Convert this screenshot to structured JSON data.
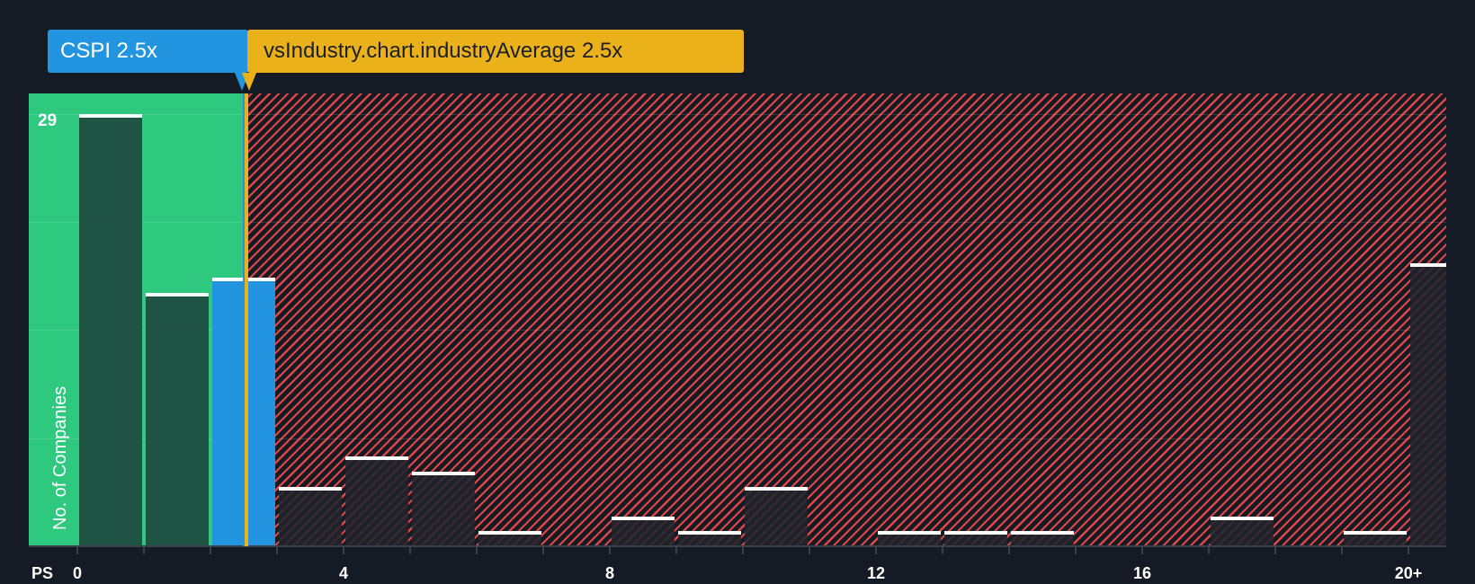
{
  "chart_data": {
    "type": "bar",
    "title": "",
    "xlabel": "PS",
    "ylabel": "No. of Companies",
    "x_tick_labels": [
      "0",
      "4",
      "8",
      "12",
      "16",
      "20+"
    ],
    "x_ticks": [
      0,
      4,
      8,
      12,
      16,
      20
    ],
    "bins": [
      "0-1",
      "1-2",
      "2-3",
      "3-4",
      "4-5",
      "5-6",
      "6-7",
      "7-8",
      "8-9",
      "9-10",
      "10-11",
      "11-12",
      "12-13",
      "13-14",
      "14-15",
      "15-16",
      "16-17",
      "17-18",
      "18-19",
      "19-20",
      "20+"
    ],
    "values": [
      29,
      17,
      18,
      4,
      6,
      5,
      1,
      0,
      2,
      1,
      4,
      0,
      1,
      1,
      1,
      0,
      0,
      2,
      0,
      1,
      19
    ],
    "highlight_bin": "2-3",
    "ylim": [
      0,
      30
    ],
    "y_max_label": "29",
    "grid": true,
    "gridline_values": [
      7.25,
      14.5,
      21.75,
      29
    ],
    "company": {
      "ticker": "CSPI",
      "value": 2.5,
      "label": "CSPI 2.5x"
    },
    "industry_average": {
      "value": 2.5,
      "label": "vsIndustry.chart.industryAverage 2.5x"
    },
    "zones": {
      "good_below": 2.5,
      "bad_above": 2.5
    }
  },
  "colors": {
    "background": "#151b24",
    "good_zone": "#2ec97f",
    "bad_zone_stripe": "#e04646",
    "company": "#2394e0",
    "industry": "#ebb11a",
    "bar_in_good_zone": "#1f4d40"
  },
  "labels": {
    "company_callout": "CSPI 2.5x",
    "industry_callout": "vsIndustry.chart.industryAverage 2.5x",
    "y_axis": "No. of Companies",
    "x_axis": "PS",
    "y_max": "29"
  }
}
